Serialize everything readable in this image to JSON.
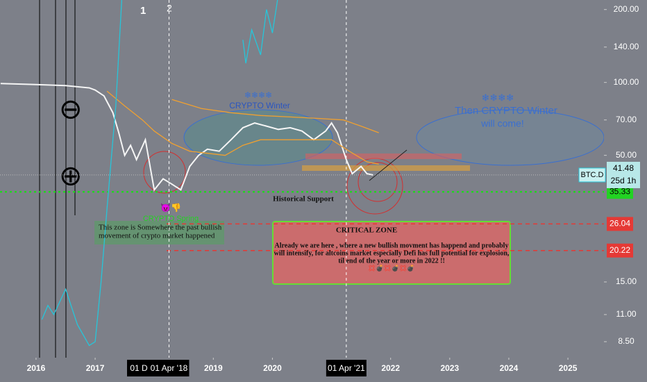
{
  "chart_data": {
    "type": "line",
    "symbol": "BTC.D",
    "log_scale": true,
    "xlim": [
      2015.39,
      2025.61
    ],
    "xticks": [
      2016,
      2017,
      2019,
      2020,
      2022,
      2023,
      2024,
      2025
    ],
    "ylim": [
      7.3,
      219
    ],
    "yticks": [
      {
        "value": 200,
        "label": "200.00"
      },
      {
        "value": 140,
        "label": "140.00"
      },
      {
        "value": 100,
        "label": "100.00"
      },
      {
        "value": 70,
        "label": "70.00"
      },
      {
        "value": 50,
        "label": "50.00"
      },
      {
        "value": 15,
        "label": "15.00"
      },
      {
        "value": 11,
        "label": "11.00"
      },
      {
        "value": 8.5,
        "label": "8.50"
      }
    ],
    "series": [
      {
        "color": "#f5f5f5",
        "x": [
          2015.4,
          2016.0,
          2016.5,
          2016.9,
          2017.0,
          2017.15,
          2017.3,
          2017.4,
          2017.5,
          2017.6,
          2017.7,
          2017.85,
          2018.0,
          2018.15,
          2018.3,
          2018.45,
          2018.6,
          2018.75,
          2018.9,
          2019.1,
          2019.3,
          2019.5,
          2019.7,
          2019.9,
          2020.1,
          2020.3,
          2020.5,
          2020.7,
          2020.9,
          2021.0,
          2021.1,
          2021.25,
          2021.35,
          2021.5,
          2021.6,
          2021.7
        ],
        "values": [
          99,
          98,
          97,
          95,
          93,
          88,
          75,
          62,
          50,
          55,
          48,
          58,
          36,
          40,
          38,
          36,
          45,
          50,
          53,
          52,
          58,
          65,
          68,
          66,
          64,
          65,
          63,
          58,
          63,
          68,
          62,
          48,
          42,
          45,
          42,
          41.48
        ]
      },
      {
        "color": "#f0a030",
        "x": [
          2017.2,
          2017.5,
          2017.8,
          2018.0,
          2018.3,
          2018.6,
          2018.9,
          2019.2,
          2019.5,
          2019.8,
          2020.2,
          2020.6,
          2021.0,
          2021.3,
          2021.6,
          2021.8
        ],
        "values": [
          92,
          80,
          70,
          63,
          56,
          52,
          51,
          50,
          55,
          58,
          58,
          58,
          58,
          52,
          47,
          46
        ]
      },
      {
        "color": "#f0a030",
        "x": [
          2018.3,
          2018.8,
          2019.3,
          2019.8,
          2020.3,
          2020.8,
          2021.2,
          2021.5,
          2021.8
        ],
        "values": [
          85,
          78,
          75,
          73,
          72,
          71,
          70,
          66,
          62
        ]
      },
      {
        "color": "#26c6da",
        "x": [
          2016.1,
          2016.2,
          2016.3,
          2016.5,
          2016.7,
          2016.9,
          2017.0,
          2017.1,
          2017.2,
          2017.35,
          2017.45,
          2019.4,
          2019.5,
          2019.55,
          2019.65,
          2019.8,
          2019.9,
          2020.0,
          2020.1
        ],
        "values": [
          10.5,
          12,
          11,
          14,
          10,
          8.2,
          8.5,
          15,
          30,
          80,
          220,
          null,
          150,
          120,
          165,
          130,
          200,
          160,
          230
        ]
      }
    ],
    "last_value": 41.48,
    "countdown": "25d 1h",
    "levels": [
      {
        "value": 35.33,
        "color": "#22d322"
      },
      {
        "value": 26.04,
        "color": "#e53935"
      },
      {
        "value": 20.22,
        "color": "#e53935"
      }
    ],
    "x_markers": [
      {
        "value": 2018.25,
        "label": "01 Apr '18"
      },
      {
        "value": 2021.25,
        "label": "01 Apr '21"
      }
    ],
    "interval_label": "01 D",
    "annotations": {
      "wave1": "1",
      "wave2": "2",
      "winter_icons": "❄❄❄❄",
      "winter": "CRYPTO Winter",
      "next_icons": "❄❄❄❄",
      "next_winter": [
        "Then CRYPTO Winter",
        "will come!"
      ],
      "spring_icons": "😈👎",
      "spring": "CRYPTO Spring",
      "support": "Historical Support",
      "zone": [
        "This zone is Somewhere the past  bullish",
        "movement of crypto market happened"
      ],
      "critical_title": "CRITICAL ZONE",
      "critical": [
        "Already we are here  , where a new bullish movment has happend  and probably",
        "will intensify, for altcoins market especially  Defi has full potential for explosion,",
        "til end of the year or more in 2022 !!",
        "💢💣💢💣💢💣"
      ]
    }
  }
}
